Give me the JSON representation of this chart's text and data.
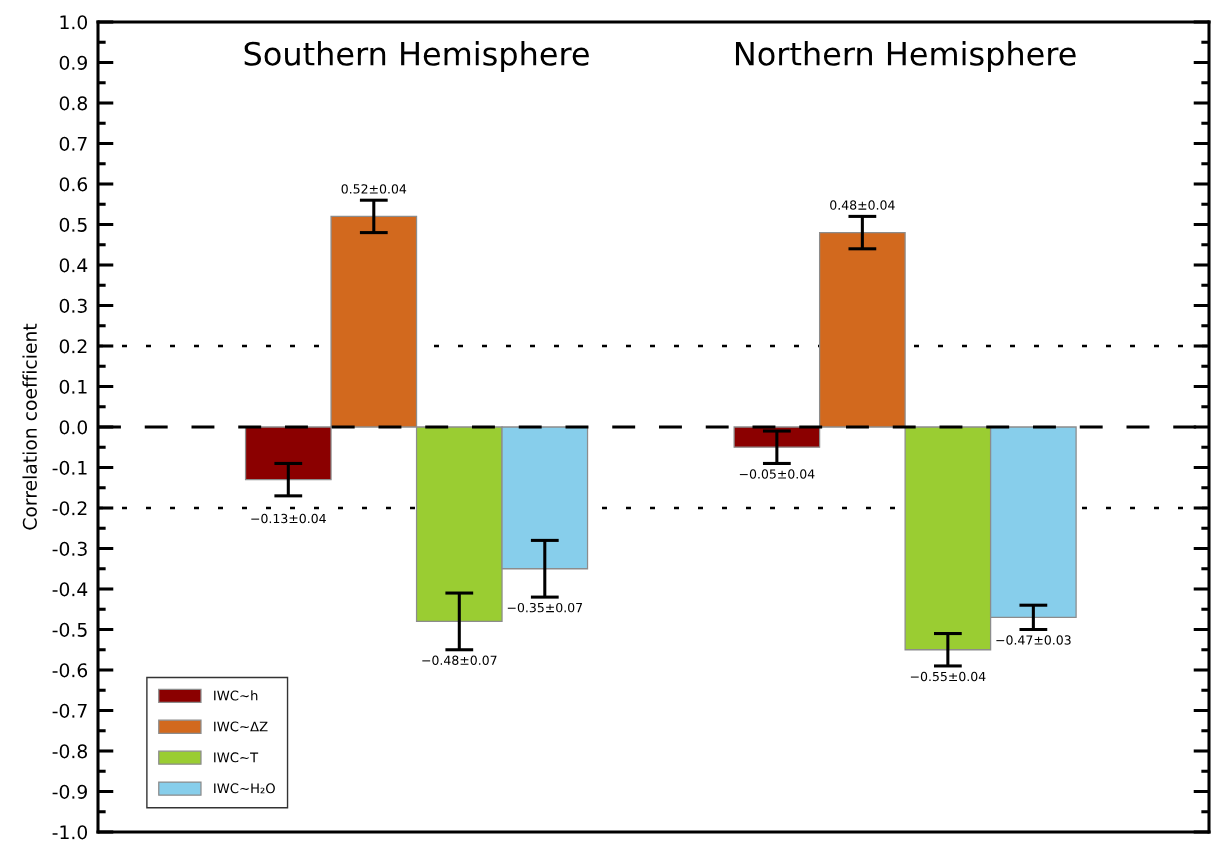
{
  "chart_data": {
    "type": "bar",
    "categories": [
      "Southern Hemisphere",
      "Northern Hemisphere"
    ],
    "ylabel": "Correlation coefficient",
    "ylim": [
      -1.0,
      1.0
    ],
    "yticks": [
      {
        "value": -1.0,
        "label": "-1.0"
      },
      {
        "value": -0.95,
        "label": null
      },
      {
        "value": -0.9,
        "label": "-0.9"
      },
      {
        "value": -0.85,
        "label": null
      },
      {
        "value": -0.8,
        "label": "-0.8"
      },
      {
        "value": -0.75,
        "label": null
      },
      {
        "value": -0.7,
        "label": "-0.7"
      },
      {
        "value": -0.65,
        "label": null
      },
      {
        "value": -0.6,
        "label": "-0.6"
      },
      {
        "value": -0.55,
        "label": null
      },
      {
        "value": -0.5,
        "label": "-0.5"
      },
      {
        "value": -0.45,
        "label": null
      },
      {
        "value": -0.4,
        "label": "-0.4"
      },
      {
        "value": -0.35,
        "label": null
      },
      {
        "value": -0.3,
        "label": "-0.3"
      },
      {
        "value": -0.25,
        "label": null
      },
      {
        "value": -0.2,
        "label": "-0.2"
      },
      {
        "value": -0.15,
        "label": null
      },
      {
        "value": -0.1,
        "label": "-0.1"
      },
      {
        "value": -0.05,
        "label": null
      },
      {
        "value": 0.0,
        "label": "0.0"
      },
      {
        "value": 0.05,
        "label": null
      },
      {
        "value": 0.1,
        "label": "0.1"
      },
      {
        "value": 0.15,
        "label": null
      },
      {
        "value": 0.2,
        "label": "0.2"
      },
      {
        "value": 0.25,
        "label": null
      },
      {
        "value": 0.3,
        "label": "0.3"
      },
      {
        "value": 0.35,
        "label": null
      },
      {
        "value": 0.4,
        "label": "0.4"
      },
      {
        "value": 0.45,
        "label": null
      },
      {
        "value": 0.5,
        "label": "0.5"
      },
      {
        "value": 0.55,
        "label": null
      },
      {
        "value": 0.6,
        "label": "0.6"
      },
      {
        "value": 0.65,
        "label": null
      },
      {
        "value": 0.7,
        "label": "0.7"
      },
      {
        "value": 0.75,
        "label": null
      },
      {
        "value": 0.8,
        "label": "0.8"
      },
      {
        "value": 0.85,
        "label": null
      },
      {
        "value": 0.9,
        "label": "0.9"
      },
      {
        "value": 0.95,
        "label": null
      },
      {
        "value": 1.0,
        "label": "1.0"
      }
    ],
    "series": [
      {
        "name": "IWC~h",
        "color": "#8b0000",
        "values": [
          -0.13,
          -0.05
        ],
        "errors": [
          0.04,
          0.04
        ],
        "value_labels": [
          "−0.13±0.04",
          "−0.05±0.04"
        ]
      },
      {
        "name": "IWC~ΔZ",
        "color": "#d2691e",
        "values": [
          0.52,
          0.48
        ],
        "errors": [
          0.04,
          0.04
        ],
        "value_labels": [
          "0.52±0.04",
          "0.48±0.04"
        ]
      },
      {
        "name": "IWC~T",
        "color": "#9acd32",
        "values": [
          -0.48,
          -0.55
        ],
        "errors": [
          0.07,
          0.04
        ],
        "value_labels": [
          "−0.48±0.07",
          "−0.55±0.04"
        ]
      },
      {
        "name": "IWC~H₂O",
        "color": "#87ceeb",
        "values": [
          -0.35,
          -0.47
        ],
        "errors": [
          0.07,
          0.03
        ],
        "value_labels": [
          "−0.35±0.07",
          "−0.47±0.03"
        ]
      }
    ],
    "ref_lines": [
      {
        "axis": "y",
        "value": 0.0,
        "line_style": "dashed",
        "color": "#000000"
      },
      {
        "axis": "y",
        "value": 0.2,
        "line_style": "dotted",
        "color": "#000000"
      },
      {
        "axis": "y",
        "value": -0.2,
        "line_style": "dotted",
        "color": "#000000"
      }
    ],
    "legend": "bottom left"
  }
}
